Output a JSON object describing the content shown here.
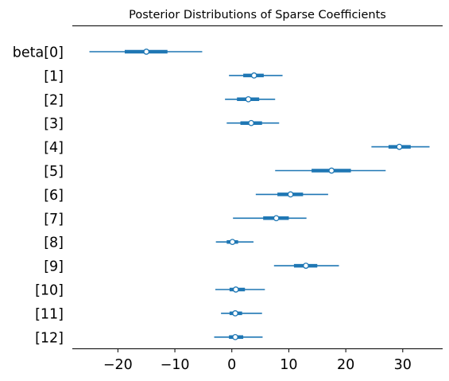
{
  "chart_data": {
    "type": "forest",
    "title": "Posterior Distributions of Sparse Coefficients",
    "xlabel": "",
    "ylabel": "",
    "xlim": [
      -28,
      37
    ],
    "xticks": [
      -20,
      -10,
      0,
      10,
      20,
      30
    ],
    "xtick_labels": [
      "−20",
      "−10",
      "0",
      "10",
      "20",
      "30"
    ],
    "color": "#1f77b4",
    "grid": false,
    "labels": [
      "beta[0]",
      "[1]",
      "[2]",
      "[3]",
      "[4]",
      "[5]",
      "[6]",
      "[7]",
      "[8]",
      "[9]",
      "[10]",
      "[11]",
      "[12]"
    ],
    "series": [
      {
        "median": -15.0,
        "hdi_low": -25.0,
        "hdi_high": -5.2,
        "iqr_low": -18.8,
        "iqr_high": -11.3
      },
      {
        "median": 3.9,
        "hdi_low": -0.5,
        "hdi_high": 8.9,
        "iqr_low": 2.0,
        "iqr_high": 5.6
      },
      {
        "median": 2.9,
        "hdi_low": -1.2,
        "hdi_high": 7.6,
        "iqr_low": 0.9,
        "iqr_high": 4.8
      },
      {
        "median": 3.4,
        "hdi_low": -0.9,
        "hdi_high": 8.3,
        "iqr_low": 1.5,
        "iqr_high": 5.3
      },
      {
        "median": 29.4,
        "hdi_low": 24.5,
        "hdi_high": 34.7,
        "iqr_low": 27.5,
        "iqr_high": 31.4
      },
      {
        "median": 17.5,
        "hdi_low": 7.6,
        "hdi_high": 27.0,
        "iqr_low": 14.0,
        "iqr_high": 20.9
      },
      {
        "median": 10.3,
        "hdi_low": 4.2,
        "hdi_high": 16.9,
        "iqr_low": 8.0,
        "iqr_high": 12.5
      },
      {
        "median": 7.8,
        "hdi_low": 0.2,
        "hdi_high": 13.1,
        "iqr_low": 5.5,
        "iqr_high": 10.0
      },
      {
        "median": 0.1,
        "hdi_low": -2.8,
        "hdi_high": 3.8,
        "iqr_low": -0.9,
        "iqr_high": 1.1
      },
      {
        "median": 13.0,
        "hdi_low": 7.4,
        "hdi_high": 18.8,
        "iqr_low": 10.9,
        "iqr_high": 15.0
      },
      {
        "median": 0.7,
        "hdi_low": -2.9,
        "hdi_high": 5.8,
        "iqr_low": -0.4,
        "iqr_high": 2.3
      },
      {
        "median": 0.6,
        "hdi_low": -1.9,
        "hdi_high": 5.3,
        "iqr_low": -0.4,
        "iqr_high": 1.8
      },
      {
        "median": 0.6,
        "hdi_low": -3.1,
        "hdi_high": 5.4,
        "iqr_low": -0.5,
        "iqr_high": 2.0
      }
    ]
  }
}
